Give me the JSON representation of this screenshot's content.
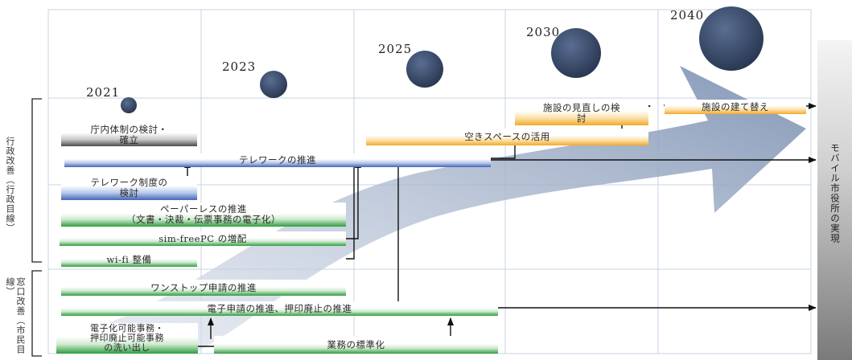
{
  "years": [
    "2021",
    "2023",
    "2025",
    "2030",
    "2040"
  ],
  "categories": {
    "admin": "行政改善（行政目線）",
    "window": "窓口改善（市民目線）"
  },
  "goal": "モバイル市役所の実現",
  "tasks": {
    "facility_review": "施設の見直しの検\n討",
    "facility_rebuild": "施設の建て替え",
    "space_use": "空きスペースの活用",
    "internal_system": "庁内体制の検討・\n確立",
    "telework": "テレワークの推進",
    "telework_system": "テレワーク制度の\n検討",
    "paperless": "ペーパーレスの推進\n（文書・決裁・伝票事務の電子化）",
    "simfree": "sim-freePC の増配",
    "wifi": "wi-fi 整備",
    "onestop": "ワンストップ申請の推進",
    "e_application": "電子申請の推進、押印廃止の推進",
    "digitizable": "電子化可能事務・\n押印廃止可能事務\nの洗い出し",
    "standardize": "業務の標準化"
  },
  "colors": {
    "grid": "#c9d3e3",
    "circle": "#34466a",
    "big_arrow": "#8a9cba",
    "green": "#2e9e3e",
    "blue": "#4566b4",
    "orange": "#f2aa28"
  }
}
